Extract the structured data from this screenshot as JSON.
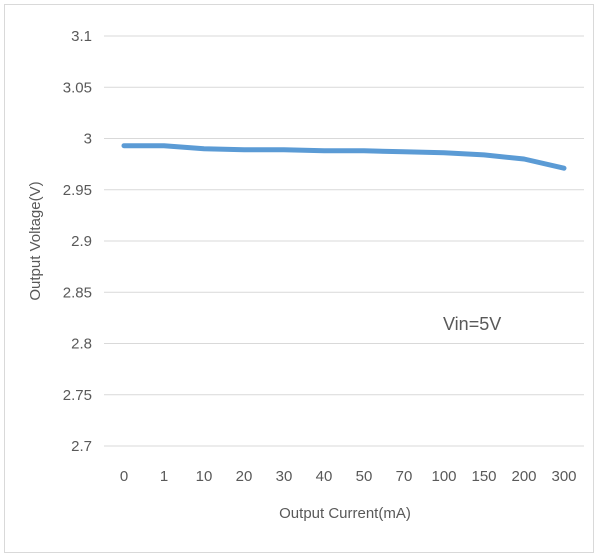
{
  "chart_data": {
    "type": "line",
    "categories": [
      "0",
      "1",
      "10",
      "20",
      "30",
      "40",
      "50",
      "70",
      "100",
      "150",
      "200",
      "300"
    ],
    "series": [
      {
        "values": [
          2.993,
          2.993,
          2.99,
          2.989,
          2.989,
          2.988,
          2.988,
          2.987,
          2.986,
          2.984,
          2.98,
          2.971
        ],
        "color": "#5b9bd5"
      }
    ],
    "title": "",
    "xlabel": "Output Current(mA)",
    "ylabel": "Output Voltage(V)",
    "ylim": [
      2.7,
      3.1
    ],
    "yticks": [
      "2.7",
      "2.75",
      "2.8",
      "2.85",
      "2.9",
      "2.95",
      "3",
      "3.05",
      "3.1"
    ],
    "annotation": "Vin=5V",
    "grid": "horizontal",
    "legend": "none"
  }
}
